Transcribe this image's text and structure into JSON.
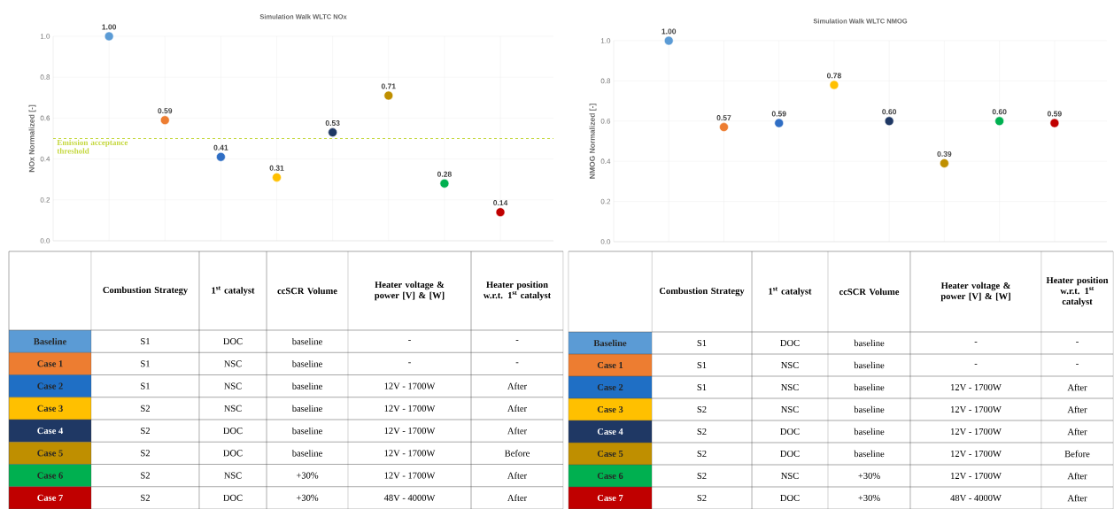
{
  "chart_data": [
    {
      "type": "scatter",
      "title": "Simulation Walk WLTC NOx",
      "ylabel": "NOx Normalized [-]",
      "categories": [
        null,
        null,
        null,
        null,
        null,
        null,
        null,
        null
      ],
      "values": [
        1.0,
        0.59,
        0.41,
        0.31,
        0.53,
        0.71,
        0.28,
        0.14
      ],
      "value_labels": [
        "1.00",
        "0.59",
        "0.41",
        "0.31",
        "0.53",
        "0.71",
        "0.28",
        "0.14"
      ],
      "colors": [
        "#5b9bd5",
        "#ed7d31",
        "#2f6ec4",
        "#ffc000",
        "#1f3864",
        "#bf8f00",
        "#00b050",
        "#c00000"
      ],
      "ylim": [
        0,
        1
      ],
      "yticks": [
        {
          "value": 0,
          "label": "0.0"
        },
        {
          "value": 0.2,
          "label": "0.2"
        },
        {
          "value": 0.4,
          "label": "0.4"
        },
        {
          "value": 0.6,
          "label": "0.6"
        },
        {
          "value": 0.8,
          "label": "0.8"
        },
        {
          "value": 1,
          "label": "1.0"
        }
      ],
      "grid": true,
      "ref_lines": [
        {
          "axis": "y",
          "value": 0.5,
          "label": "Emission acceptance threshold",
          "color": "#c4d73c",
          "line_style": "dashed"
        }
      ]
    },
    {
      "type": "scatter",
      "title": "Simulation Walk WLTC NMOG",
      "ylabel": "NMOG Normalized [-]",
      "categories": [
        null,
        null,
        null,
        null,
        null,
        null,
        null,
        null
      ],
      "values": [
        1.0,
        0.57,
        0.59,
        0.78,
        0.6,
        0.39,
        0.6,
        0.59
      ],
      "value_labels": [
        "1.00",
        "0.57",
        "0.59",
        "0.78",
        "0.60",
        "0.39",
        "0.60",
        "0.59"
      ],
      "colors": [
        "#5b9bd5",
        "#ed7d31",
        "#2f6ec4",
        "#ffc000",
        "#1f3864",
        "#bf8f00",
        "#00b050",
        "#c00000"
      ],
      "ylim": [
        0,
        1
      ],
      "yticks": [
        {
          "value": 0,
          "label": "0.0"
        },
        {
          "value": 0.2,
          "label": "0.2"
        },
        {
          "value": 0.4,
          "label": "0.4"
        },
        {
          "value": 0.6,
          "label": "0.6"
        },
        {
          "value": 0.8,
          "label": "0.8"
        },
        {
          "value": 1,
          "label": "1.0"
        }
      ],
      "grid": true
    },
    {
      "type": "other",
      "categories": [
        "Baseline",
        "Case 1",
        "Case 2",
        "Case 3",
        "Case 4",
        "Case 5",
        "Case 6",
        "Case 7"
      ],
      "colors": [
        "#5b9bd5",
        "#ed7d31",
        "#1f6fc5",
        "#ffc000",
        "#1f3864",
        "#bf8f00",
        "#00b050",
        "#c00000"
      ],
      "annotations": [
        "Combustion Strategy",
        "1$^{st}$ catalyst",
        "ccSCR Volume",
        "Heater voltage & power [V] & [W]",
        "Heater position w.r.t. 1$^{st}$ catalyst",
        "S1",
        "DOC",
        "baseline",
        "-",
        "-",
        "S1",
        "NSC",
        "baseline",
        "-",
        "-",
        "S1",
        "NSC",
        "baseline",
        "12V - 1700W",
        "After",
        "S2",
        "NSC",
        "baseline",
        "12V - 1700W",
        "After",
        "S2",
        "DOC",
        "baseline",
        "12V - 1700W",
        "After",
        "S2",
        "DOC",
        "baseline",
        "12V - 1700W",
        "Before",
        "S2",
        "NSC",
        "+30%",
        "12V - 1700W",
        "After",
        "S2",
        "DOC",
        "+30%",
        "48V - 4000W",
        "After"
      ]
    },
    {
      "type": "other",
      "categories": [
        "Baseline",
        "Case 1",
        "Case 2",
        "Case 3",
        "Case 4",
        "Case 5",
        "Case 6",
        "Case 7"
      ],
      "colors": [
        "#5b9bd5",
        "#ed7d31",
        "#1f6fc5",
        "#ffc000",
        "#1f3864",
        "#bf8f00",
        "#00b050",
        "#c00000"
      ],
      "annotations": [
        "Combustion Strategy",
        "1$^{st}$ catalyst",
        "ccSCR Volume",
        "Heater voltage & power [V] & [W]",
        "Heater position w.r.t. 1$^{st}$ catalyst",
        "S1",
        "DOC",
        "baseline",
        "-",
        "-",
        "S1",
        "NSC",
        "baseline",
        "-",
        "-",
        "S1",
        "NSC",
        "baseline",
        "12V - 1700W",
        "After",
        "S2",
        "NSC",
        "baseline",
        "12V - 1700W",
        "After",
        "S2",
        "DOC",
        "baseline",
        "12V - 1700W",
        "After",
        "S2",
        "DOC",
        "baseline",
        "12V - 1700W",
        "Before",
        "S2",
        "NSC",
        "+30%",
        "12V - 1700W",
        "After",
        "S2",
        "DOC",
        "+30%",
        "48V - 4000W",
        "After"
      ]
    }
  ]
}
